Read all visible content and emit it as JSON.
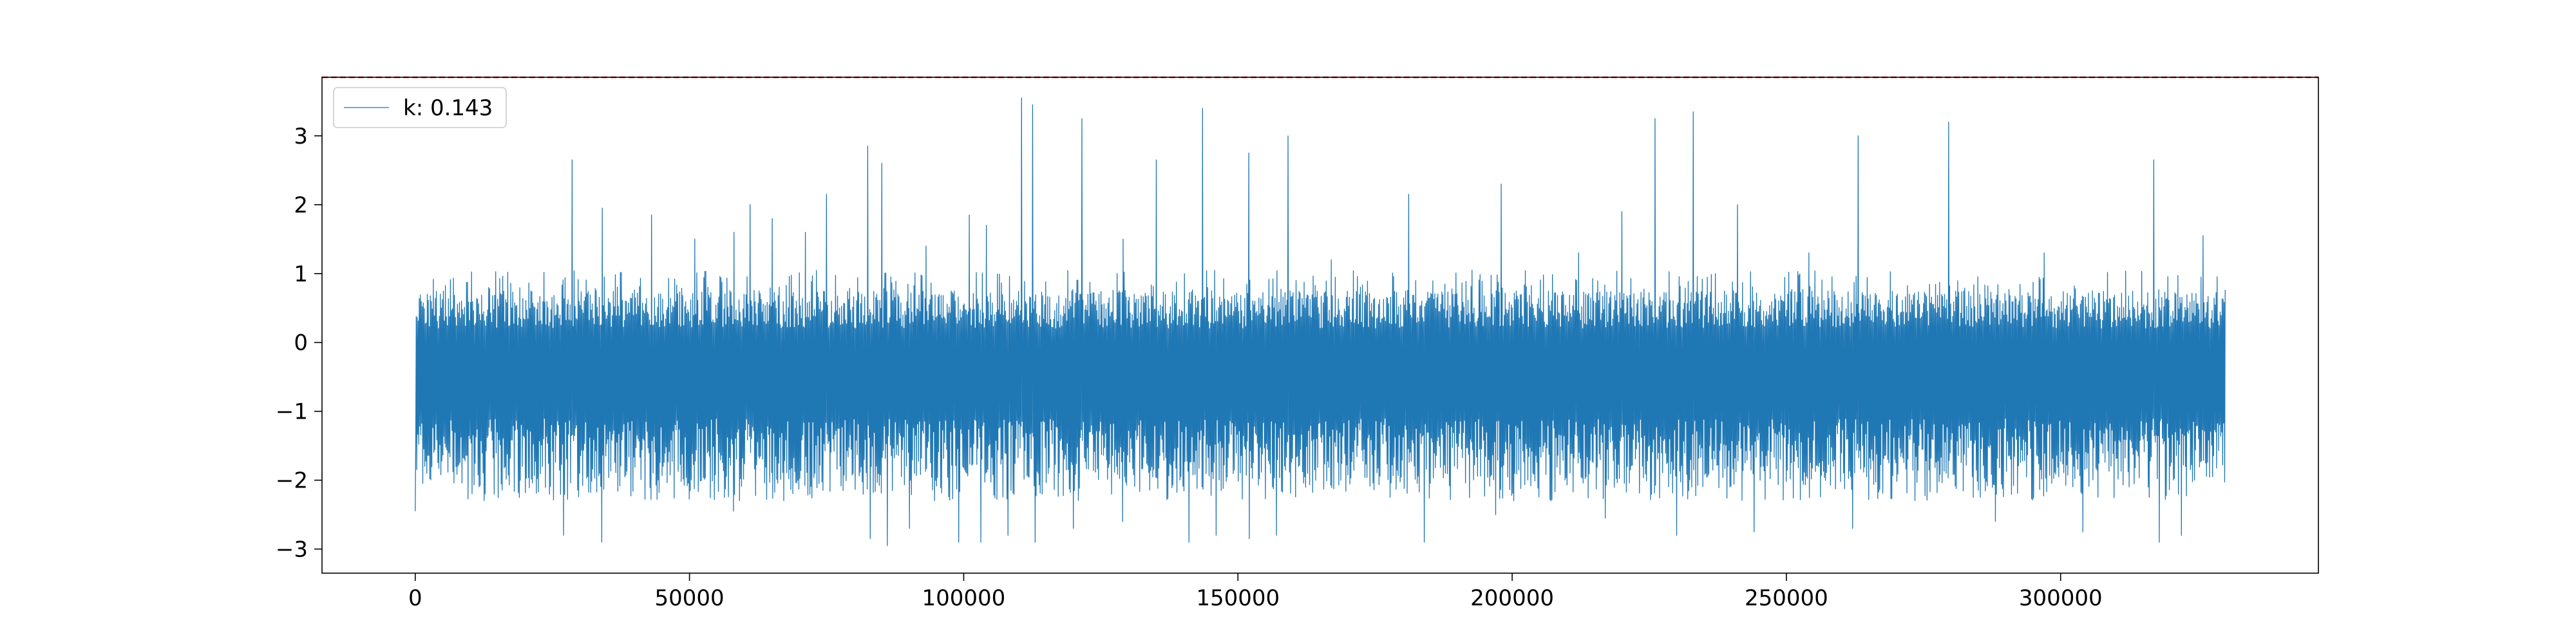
{
  "chart_data": {
    "type": "line",
    "title": "",
    "xlabel": "",
    "ylabel": "",
    "xlim": [
      -17000,
      347000
    ],
    "ylim": [
      -3.35,
      3.85
    ],
    "x_ticks": [
      0,
      50000,
      100000,
      150000,
      200000,
      250000,
      300000
    ],
    "x_tick_labels": [
      "0",
      "50000",
      "100000",
      "150000",
      "200000",
      "250000",
      "300000"
    ],
    "y_ticks": [
      -3,
      -2,
      -1,
      0,
      1,
      2,
      3
    ],
    "y_tick_labels": [
      "−3",
      "−2",
      "−1",
      "0",
      "1",
      "2",
      "3"
    ],
    "grid": false,
    "legend_position": "top-left",
    "series": [
      {
        "name": "k: 0.143",
        "color": "#1f77b4",
        "x_range": [
          0,
          330000
        ],
        "envelope_typical": {
          "upper": 0.75,
          "lower": -2.0
        },
        "peaks": [
          {
            "x": 28500,
            "y": 2.65
          },
          {
            "x": 34000,
            "y": 1.95
          },
          {
            "x": 43000,
            "y": 1.85
          },
          {
            "x": 51000,
            "y": 1.5
          },
          {
            "x": 58000,
            "y": 1.6
          },
          {
            "x": 61000,
            "y": 2.0
          },
          {
            "x": 65000,
            "y": 1.8
          },
          {
            "x": 71000,
            "y": 1.6
          },
          {
            "x": 75000,
            "y": 2.15
          },
          {
            "x": 82500,
            "y": 2.85
          },
          {
            "x": 85000,
            "y": 2.6
          },
          {
            "x": 93000,
            "y": 1.4
          },
          {
            "x": 101000,
            "y": 1.85
          },
          {
            "x": 104000,
            "y": 1.7
          },
          {
            "x": 110500,
            "y": 3.55
          },
          {
            "x": 112500,
            "y": 3.45
          },
          {
            "x": 121500,
            "y": 3.25
          },
          {
            "x": 129000,
            "y": 1.5
          },
          {
            "x": 135000,
            "y": 2.65
          },
          {
            "x": 143500,
            "y": 3.4
          },
          {
            "x": 152000,
            "y": 2.75
          },
          {
            "x": 159000,
            "y": 3.0
          },
          {
            "x": 167000,
            "y": 1.2
          },
          {
            "x": 181000,
            "y": 2.15
          },
          {
            "x": 198000,
            "y": 2.3
          },
          {
            "x": 212000,
            "y": 1.3
          },
          {
            "x": 220000,
            "y": 1.9
          },
          {
            "x": 226000,
            "y": 3.25
          },
          {
            "x": 233000,
            "y": 3.35
          },
          {
            "x": 241000,
            "y": 2.0
          },
          {
            "x": 254000,
            "y": 1.3
          },
          {
            "x": 263000,
            "y": 3.0
          },
          {
            "x": 279500,
            "y": 3.2
          },
          {
            "x": 297000,
            "y": 1.3
          },
          {
            "x": 317000,
            "y": 2.65
          },
          {
            "x": 326000,
            "y": 1.55
          }
        ],
        "troughs": [
          {
            "x": 27000,
            "y": -2.8
          },
          {
            "x": 34000,
            "y": -2.9
          },
          {
            "x": 58000,
            "y": -2.45
          },
          {
            "x": 83000,
            "y": -2.85
          },
          {
            "x": 86000,
            "y": -2.95
          },
          {
            "x": 90000,
            "y": -2.7
          },
          {
            "x": 99000,
            "y": -2.9
          },
          {
            "x": 103000,
            "y": -2.9
          },
          {
            "x": 108000,
            "y": -2.8
          },
          {
            "x": 113000,
            "y": -2.9
          },
          {
            "x": 120000,
            "y": -2.7
          },
          {
            "x": 129000,
            "y": -2.6
          },
          {
            "x": 141000,
            "y": -2.9
          },
          {
            "x": 146000,
            "y": -2.8
          },
          {
            "x": 152000,
            "y": -2.85
          },
          {
            "x": 157000,
            "y": -2.8
          },
          {
            "x": 184000,
            "y": -2.9
          },
          {
            "x": 197000,
            "y": -2.5
          },
          {
            "x": 217000,
            "y": -2.55
          },
          {
            "x": 230000,
            "y": -2.8
          },
          {
            "x": 244000,
            "y": -2.75
          },
          {
            "x": 262000,
            "y": -2.7
          },
          {
            "x": 288000,
            "y": -2.6
          },
          {
            "x": 304000,
            "y": -2.75
          },
          {
            "x": 318000,
            "y": -2.9
          },
          {
            "x": 322000,
            "y": -2.8
          }
        ]
      }
    ],
    "reference_line": {
      "y": 3.85,
      "color": "#d62728",
      "style": "dashed"
    }
  }
}
